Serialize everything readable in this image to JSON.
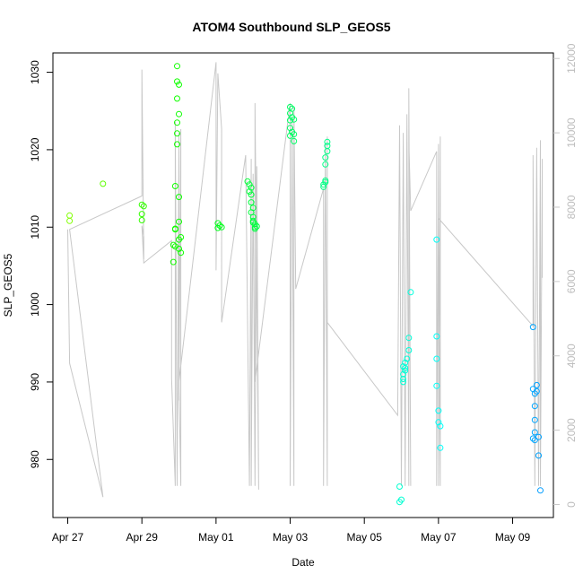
{
  "chart_data": {
    "type": "scatter",
    "title": "ATOM4 Southbound SLP_GEOS5",
    "xlabel": "Date",
    "ylabel": "SLP_GEOS5",
    "x_ticks": [
      "Apr 27",
      "Apr 29",
      "May 01",
      "May 03",
      "May 05",
      "May 07",
      "May 09"
    ],
    "x_tick_days": [
      0,
      2,
      4,
      6,
      8,
      10,
      12
    ],
    "xlim_days": [
      -0.4,
      13.1
    ],
    "ylim": [
      972.5,
      1032.5
    ],
    "y_ticks": [
      980,
      990,
      1000,
      1010,
      1020,
      1030
    ],
    "right_axis": {
      "label": "",
      "ylim": [
        -350,
        12150
      ],
      "ticks": [
        0,
        2000,
        4000,
        6000,
        8000,
        10000,
        12000
      ],
      "color": "#c8c8c8"
    },
    "grid": false,
    "series": [
      {
        "name": "",
        "marker": "open-circle",
        "color_scale": "green-to-blue by date",
        "points": [
          [
            0.05,
            1011.5
          ],
          [
            0.05,
            1010.8
          ],
          [
            0.95,
            1015.6
          ],
          [
            2.0,
            1012.9
          ],
          [
            2.05,
            1012.7
          ],
          [
            2.0,
            1011.7
          ],
          [
            2.0,
            1010.9
          ],
          [
            2.85,
            1005.5
          ],
          [
            2.85,
            1007.7
          ],
          [
            2.9,
            1009.8
          ],
          [
            2.9,
            1015.3
          ],
          [
            2.95,
            1020.7
          ],
          [
            2.95,
            1022.1
          ],
          [
            2.95,
            1023.5
          ],
          [
            3.0,
            1024.6
          ],
          [
            2.95,
            1026.6
          ],
          [
            2.95,
            1028.8
          ],
          [
            3.0,
            1028.4
          ],
          [
            2.95,
            1030.8
          ],
          [
            3.0,
            1013.9
          ],
          [
            3.0,
            1010.7
          ],
          [
            3.05,
            1008.7
          ],
          [
            3.0,
            1008.4
          ],
          [
            3.0,
            1007.2
          ],
          [
            3.05,
            1006.7
          ],
          [
            2.9,
            1007.5
          ],
          [
            2.9,
            1009.7
          ],
          [
            4.05,
            1010.5
          ],
          [
            4.1,
            1010.2
          ],
          [
            4.15,
            1010.0
          ],
          [
            4.05,
            1009.9
          ],
          [
            4.85,
            1015.9
          ],
          [
            4.9,
            1015.5
          ],
          [
            4.95,
            1015.1
          ],
          [
            4.9,
            1014.6
          ],
          [
            4.95,
            1014.2
          ],
          [
            4.95,
            1013.2
          ],
          [
            5.0,
            1012.5
          ],
          [
            4.95,
            1011.9
          ],
          [
            5.0,
            1011.3
          ],
          [
            5.0,
            1010.8
          ],
          [
            5.05,
            1010.4
          ],
          [
            5.1,
            1010.1
          ],
          [
            5.05,
            1009.8
          ],
          [
            5.0,
            1010.6
          ],
          [
            5.05,
            1010.0
          ],
          [
            6.0,
            1025.5
          ],
          [
            6.05,
            1025.3
          ],
          [
            6.0,
            1024.7
          ],
          [
            6.05,
            1024.2
          ],
          [
            6.0,
            1023.8
          ],
          [
            6.1,
            1023.9
          ],
          [
            6.0,
            1022.8
          ],
          [
            6.05,
            1022.3
          ],
          [
            6.1,
            1022.0
          ],
          [
            6.0,
            1021.8
          ],
          [
            6.1,
            1021.1
          ],
          [
            6.9,
            1015.2
          ],
          [
            6.9,
            1015.5
          ],
          [
            6.95,
            1015.8
          ],
          [
            6.95,
            1016.0
          ],
          [
            6.95,
            1018.1
          ],
          [
            6.95,
            1019.0
          ],
          [
            7.0,
            1019.8
          ],
          [
            7.0,
            1020.5
          ],
          [
            7.0,
            1021.0
          ],
          [
            8.95,
            976.5
          ],
          [
            9.0,
            974.8
          ],
          [
            8.95,
            974.5
          ],
          [
            9.05,
            990.4
          ],
          [
            9.05,
            991.0
          ],
          [
            9.1,
            991.5
          ],
          [
            9.05,
            992.0
          ],
          [
            9.1,
            992.5
          ],
          [
            9.15,
            993.0
          ],
          [
            9.1,
            991.8
          ],
          [
            9.05,
            990.0
          ],
          [
            9.2,
            994.1
          ],
          [
            9.2,
            995.7
          ],
          [
            9.25,
            1001.6
          ],
          [
            9.95,
            1008.4
          ],
          [
            9.95,
            995.9
          ],
          [
            9.95,
            993.0
          ],
          [
            9.95,
            989.5
          ],
          [
            10.0,
            986.3
          ],
          [
            10.0,
            984.8
          ],
          [
            10.05,
            984.3
          ],
          [
            10.05,
            981.5
          ],
          [
            12.55,
            997.1
          ],
          [
            12.55,
            989.1
          ],
          [
            12.6,
            988.5
          ],
          [
            12.65,
            988.8
          ],
          [
            12.65,
            989.6
          ],
          [
            12.6,
            986.9
          ],
          [
            12.6,
            985.1
          ],
          [
            12.6,
            983.5
          ],
          [
            12.55,
            982.7
          ],
          [
            12.6,
            982.5
          ],
          [
            12.7,
            982.9
          ],
          [
            12.7,
            980.5
          ],
          [
            12.75,
            976.0
          ]
        ]
      },
      {
        "name": "",
        "axis": "right",
        "type": "line",
        "color": "#c8c8c8",
        "points": [
          [
            0.0,
            7400
          ],
          [
            0.05,
            3800
          ],
          [
            0.95,
            200
          ],
          [
            0.05,
            7400
          ],
          [
            2.0,
            8300
          ],
          [
            2.0,
            11700
          ],
          [
            2.05,
            6600
          ],
          [
            2.05,
            7200
          ],
          [
            2.0,
            7500
          ],
          [
            2.05,
            6500
          ],
          [
            2.8,
            7100
          ],
          [
            2.8,
            3400
          ],
          [
            2.9,
            500
          ],
          [
            2.9,
            10300
          ],
          [
            2.95,
            500
          ],
          [
            3.0,
            10000
          ],
          [
            3.0,
            2800
          ],
          [
            3.05,
            10100
          ],
          [
            3.05,
            500
          ],
          [
            3.0,
            3300
          ],
          [
            4.0,
            11900
          ],
          [
            4.0,
            6300
          ],
          [
            4.05,
            11600
          ],
          [
            4.15,
            10100
          ],
          [
            4.15,
            4900
          ],
          [
            4.8,
            9400
          ],
          [
            4.9,
            500
          ],
          [
            4.95,
            9300
          ],
          [
            4.95,
            500
          ],
          [
            5.0,
            8900
          ],
          [
            5.05,
            500
          ],
          [
            5.1,
            9100
          ],
          [
            5.15,
            400
          ],
          [
            5.05,
            10800
          ],
          [
            5.05,
            3300
          ],
          [
            6.0,
            10800
          ],
          [
            6.0,
            500
          ],
          [
            6.05,
            10300
          ],
          [
            6.1,
            500
          ],
          [
            6.1,
            10700
          ],
          [
            6.15,
            5800
          ],
          [
            6.9,
            8500
          ],
          [
            6.9,
            500
          ],
          [
            6.95,
            9700
          ],
          [
            7.0,
            500
          ],
          [
            7.0,
            9900
          ],
          [
            7.0,
            4900
          ],
          [
            8.9,
            2400
          ],
          [
            8.95,
            10200
          ],
          [
            9.0,
            500
          ],
          [
            9.05,
            10000
          ],
          [
            9.1,
            500
          ],
          [
            9.15,
            10500
          ],
          [
            9.2,
            500
          ],
          [
            9.2,
            11200
          ],
          [
            9.25,
            500
          ],
          [
            9.2,
            9800
          ],
          [
            9.25,
            7900
          ],
          [
            9.95,
            9500
          ],
          [
            9.95,
            500
          ],
          [
            10.0,
            9700
          ],
          [
            10.0,
            500
          ],
          [
            10.05,
            9900
          ],
          [
            10.05,
            500
          ],
          [
            10.0,
            7700
          ],
          [
            12.55,
            4800
          ],
          [
            12.55,
            9400
          ],
          [
            12.6,
            500
          ],
          [
            12.65,
            9600
          ],
          [
            12.7,
            500
          ],
          [
            12.75,
            9800
          ],
          [
            12.75,
            500
          ],
          [
            12.8,
            9300
          ],
          [
            12.8,
            6100
          ]
        ]
      }
    ]
  }
}
